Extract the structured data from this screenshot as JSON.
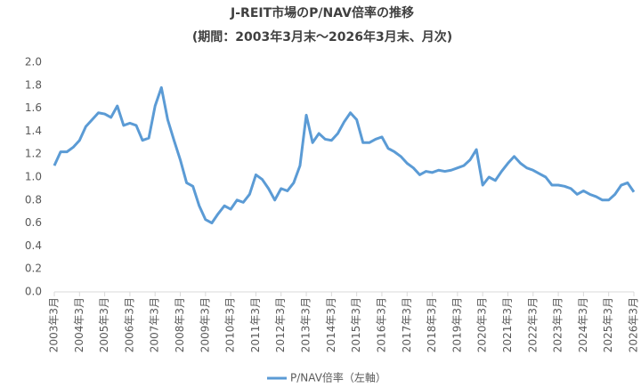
{
  "chart_data": {
    "type": "line",
    "title": "J-REIT市場のP/NAV倍率の推移",
    "subtitle": "(期間：2003年3月末～2026年3月末、月次)",
    "x": [
      "2003-03",
      "2003-06",
      "2003-09",
      "2003-12",
      "2004-03",
      "2004-06",
      "2004-09",
      "2004-12",
      "2005-03",
      "2005-06",
      "2005-09",
      "2005-12",
      "2006-03",
      "2006-06",
      "2006-09",
      "2006-12",
      "2007-03",
      "2007-06",
      "2007-09",
      "2007-12",
      "2008-03",
      "2008-06",
      "2008-09",
      "2008-12",
      "2009-03",
      "2009-06",
      "2009-09",
      "2009-12",
      "2010-03",
      "2010-06",
      "2010-09",
      "2010-12",
      "2011-03",
      "2011-06",
      "2011-09",
      "2011-12",
      "2012-03",
      "2012-06",
      "2012-09",
      "2012-12",
      "2013-03",
      "2013-06",
      "2013-09",
      "2013-12",
      "2014-03",
      "2014-06",
      "2014-09",
      "2014-12",
      "2015-03",
      "2015-06",
      "2015-09",
      "2015-12",
      "2016-03",
      "2016-06",
      "2016-09",
      "2016-12",
      "2017-03",
      "2017-06",
      "2017-09",
      "2017-12",
      "2018-03",
      "2018-06",
      "2018-09",
      "2018-12",
      "2019-03",
      "2019-06",
      "2019-09",
      "2019-12",
      "2020-03",
      "2020-06",
      "2020-09",
      "2020-12",
      "2021-03",
      "2021-06",
      "2021-09",
      "2021-12",
      "2022-03",
      "2022-06",
      "2022-09",
      "2022-12",
      "2023-03",
      "2023-06",
      "2023-09",
      "2023-12",
      "2024-03",
      "2024-06",
      "2024-09",
      "2024-12",
      "2025-03",
      "2025-06",
      "2025-09",
      "2025-12",
      "2026-03"
    ],
    "series": [
      {
        "name": "P/NAV倍率（左軸）",
        "color": "#5b9bd5",
        "values": [
          1.1,
          1.22,
          1.22,
          1.26,
          1.32,
          1.44,
          1.5,
          1.56,
          1.55,
          1.52,
          1.62,
          1.45,
          1.47,
          1.45,
          1.32,
          1.34,
          1.62,
          1.78,
          1.5,
          1.32,
          1.15,
          0.95,
          0.92,
          0.75,
          0.63,
          0.6,
          0.68,
          0.75,
          0.72,
          0.8,
          0.78,
          0.85,
          1.02,
          0.98,
          0.9,
          0.8,
          0.9,
          0.88,
          0.95,
          1.1,
          1.54,
          1.3,
          1.38,
          1.33,
          1.32,
          1.38,
          1.48,
          1.56,
          1.5,
          1.3,
          1.3,
          1.33,
          1.35,
          1.25,
          1.22,
          1.18,
          1.12,
          1.08,
          1.02,
          1.05,
          1.04,
          1.06,
          1.05,
          1.06,
          1.08,
          1.1,
          1.15,
          1.24,
          0.93,
          1.0,
          0.97,
          1.05,
          1.12,
          1.18,
          1.12,
          1.08,
          1.06,
          1.03,
          1.0,
          0.93,
          0.93,
          0.92,
          0.9,
          0.85,
          0.88,
          0.85,
          0.83,
          0.8,
          0.8,
          0.85,
          0.93,
          0.95,
          0.87
        ]
      }
    ],
    "xlim": [
      "2003-03",
      "2026-03"
    ],
    "xticks": [
      {
        "value": "2003-03",
        "label": "2003年3月"
      },
      {
        "value": "2004-03",
        "label": "2004年3月"
      },
      {
        "value": "2005-03",
        "label": "2005年3月"
      },
      {
        "value": "2006-03",
        "label": "2006年3月"
      },
      {
        "value": "2007-03",
        "label": "2007年3月"
      },
      {
        "value": "2008-03",
        "label": "2008年3月"
      },
      {
        "value": "2009-03",
        "label": "2009年3月"
      },
      {
        "value": "2010-03",
        "label": "2010年3月"
      },
      {
        "value": "2011-03",
        "label": "2011年3月"
      },
      {
        "value": "2012-03",
        "label": "2012年3月"
      },
      {
        "value": "2013-03",
        "label": "2013年3月"
      },
      {
        "value": "2014-03",
        "label": "2014年3月"
      },
      {
        "value": "2015-03",
        "label": "2015年3月"
      },
      {
        "value": "2016-03",
        "label": "2016年3月"
      },
      {
        "value": "2017-03",
        "label": "2017年3月"
      },
      {
        "value": "2018-03",
        "label": "2018年3月"
      },
      {
        "value": "2019-03",
        "label": "2019年3月"
      },
      {
        "value": "2020-03",
        "label": "2020年3月"
      },
      {
        "value": "2021-03",
        "label": "2021年3月"
      },
      {
        "value": "2022-03",
        "label": "2022年3月"
      },
      {
        "value": "2023-03",
        "label": "2023年3月"
      },
      {
        "value": "2024-03",
        "label": "2024年3月"
      },
      {
        "value": "2025-03",
        "label": "2025年3月"
      },
      {
        "value": "2026-03",
        "label": "2026年3月"
      }
    ],
    "ylim": [
      0,
      2
    ],
    "yticks": [
      {
        "value": 0,
        "label": "0.0"
      },
      {
        "value": 0.2,
        "label": "0.2"
      },
      {
        "value": 0.4,
        "label": "0.4"
      },
      {
        "value": 0.6,
        "label": "0.6"
      },
      {
        "value": 0.8,
        "label": "0.8"
      },
      {
        "value": 1,
        "label": "1.0"
      },
      {
        "value": 1.2,
        "label": "1.2"
      },
      {
        "value": 1.4,
        "label": "1.4"
      },
      {
        "value": 1.6,
        "label": "1.6"
      },
      {
        "value": 1.8,
        "label": "1.8"
      },
      {
        "value": 2,
        "label": "2.0"
      }
    ],
    "grid": false,
    "legend": "bottom"
  }
}
